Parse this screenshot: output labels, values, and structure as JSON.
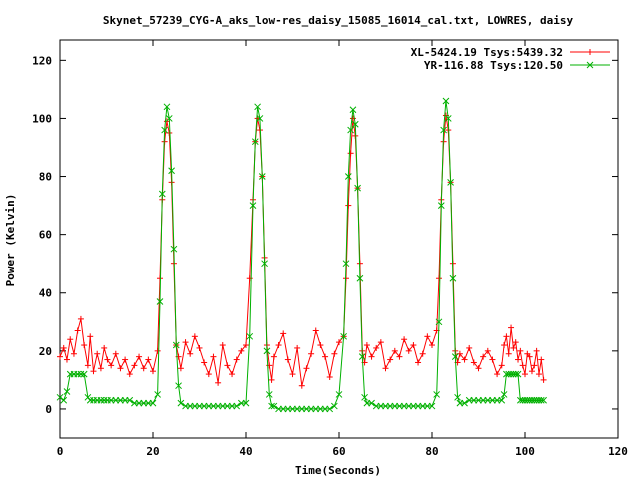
{
  "chart_data": {
    "type": "line",
    "title": "Skynet_57239_CYG-A_aks_low-res_daisy_15085_16014_cal.txt, LOWRES, daisy",
    "xlabel": "Time(Seconds)",
    "ylabel": "Power (Kelvin)",
    "xlim": [
      0,
      120
    ],
    "ylim": [
      -10,
      127
    ],
    "xticks": [
      0,
      20,
      40,
      60,
      80,
      100,
      120
    ],
    "yticks": [
      0,
      20,
      40,
      60,
      80,
      100,
      120
    ],
    "grid": false,
    "legend": "top-right",
    "series": [
      {
        "name": "XL-5424.19 Tsys:5439.32",
        "color": "#ff0000",
        "marker": "plus",
        "x": [
          0.0,
          0.8,
          1.5,
          2.2,
          3.0,
          3.8,
          4.5,
          5.2,
          6.0,
          6.5,
          7.2,
          8.0,
          8.8,
          9.5,
          10.2,
          11.0,
          12.0,
          13.0,
          14.0,
          15.0,
          16.0,
          17.0,
          18.0,
          19.0,
          20.0,
          21.0,
          21.5,
          22.0,
          22.5,
          23.0,
          23.5,
          24.0,
          24.5,
          25.0,
          25.5,
          26.0,
          27.0,
          28.0,
          29.0,
          30.0,
          31.0,
          32.0,
          33.0,
          34.0,
          35.0,
          36.0,
          37.0,
          38.0,
          39.0,
          40.0,
          40.8,
          41.5,
          42.0,
          42.5,
          43.0,
          43.5,
          44.0,
          44.5,
          45.0,
          45.5,
          46.0,
          47.0,
          48.0,
          49.0,
          50.0,
          51.0,
          52.0,
          53.0,
          54.0,
          55.0,
          56.0,
          57.0,
          58.0,
          59.0,
          60.0,
          61.0,
          61.5,
          62.0,
          62.5,
          63.0,
          63.5,
          64.0,
          64.5,
          65.0,
          65.5,
          66.0,
          67.0,
          68.0,
          69.0,
          70.0,
          71.0,
          72.0,
          73.0,
          74.0,
          75.0,
          76.0,
          77.0,
          78.0,
          79.0,
          80.0,
          81.0,
          81.5,
          82.0,
          82.5,
          83.0,
          83.5,
          84.0,
          84.5,
          85.0,
          85.5,
          86.0,
          87.0,
          88.0,
          89.0,
          90.0,
          91.0,
          92.0,
          93.0,
          94.0,
          95.0,
          95.5,
          96.0,
          96.5,
          97.0,
          97.5,
          98.0,
          98.5,
          99.0,
          99.5,
          100.0,
          100.5,
          101.0,
          101.5,
          102.0,
          102.5,
          103.0,
          103.5,
          104.0
        ],
        "y": [
          18,
          21,
          17,
          24,
          19,
          27,
          31,
          22,
          15,
          25,
          13,
          19,
          14,
          21,
          17,
          15,
          19,
          14,
          17,
          12,
          15,
          18,
          14,
          17,
          13,
          20,
          45,
          72,
          92,
          99,
          95,
          78,
          50,
          22,
          18,
          14,
          23,
          19,
          25,
          21,
          16,
          12,
          18,
          9,
          22,
          15,
          12,
          17,
          20,
          22,
          45,
          72,
          92,
          100,
          96,
          80,
          52,
          22,
          15,
          10,
          18,
          22,
          26,
          17,
          12,
          21,
          8,
          14,
          19,
          27,
          22,
          18,
          11,
          19,
          23,
          25,
          45,
          70,
          88,
          100,
          94,
          76,
          50,
          20,
          16,
          22,
          18,
          21,
          23,
          14,
          17,
          20,
          18,
          24,
          20,
          22,
          16,
          19,
          25,
          22,
          27,
          45,
          72,
          92,
          101,
          96,
          78,
          50,
          20,
          16,
          19,
          17,
          21,
          16,
          14,
          18,
          20,
          17,
          12,
          15,
          22,
          25,
          19,
          28,
          21,
          23,
          17,
          20,
          15,
          12,
          19,
          18,
          13,
          15,
          20,
          12,
          17,
          10
        ]
      },
      {
        "name": "YR-116.88 Tsys:120.50",
        "color": "#00b000",
        "marker": "cross",
        "x": [
          0.0,
          0.8,
          1.5,
          2.2,
          3.0,
          3.8,
          4.5,
          5.2,
          6.0,
          6.5,
          7.2,
          8.0,
          8.8,
          9.5,
          10.2,
          11.0,
          12.0,
          13.0,
          14.0,
          15.0,
          16.0,
          17.0,
          18.0,
          19.0,
          20.0,
          21.0,
          21.5,
          22.0,
          22.5,
          23.0,
          23.5,
          24.0,
          24.5,
          25.0,
          25.5,
          26.0,
          27.0,
          28.0,
          29.0,
          30.0,
          31.0,
          32.0,
          33.0,
          34.0,
          35.0,
          36.0,
          37.0,
          38.0,
          39.0,
          40.0,
          40.8,
          41.5,
          42.0,
          42.5,
          43.0,
          43.5,
          44.0,
          44.5,
          45.0,
          45.5,
          46.0,
          47.0,
          48.0,
          49.0,
          50.0,
          51.0,
          52.0,
          53.0,
          54.0,
          55.0,
          56.0,
          57.0,
          58.0,
          59.0,
          60.0,
          61.0,
          61.5,
          62.0,
          62.5,
          63.0,
          63.5,
          64.0,
          64.5,
          65.0,
          65.5,
          66.0,
          67.0,
          68.0,
          69.0,
          70.0,
          71.0,
          72.0,
          73.0,
          74.0,
          75.0,
          76.0,
          77.0,
          78.0,
          79.0,
          80.0,
          81.0,
          81.5,
          82.0,
          82.5,
          83.0,
          83.5,
          84.0,
          84.5,
          85.0,
          85.5,
          86.0,
          87.0,
          88.0,
          89.0,
          90.0,
          91.0,
          92.0,
          93.0,
          94.0,
          95.0,
          95.5,
          96.0,
          96.5,
          97.0,
          97.5,
          98.0,
          98.5,
          99.0,
          99.5,
          100.0,
          100.5,
          101.0,
          101.5,
          102.0,
          102.5,
          103.0,
          103.5,
          104.0
        ],
        "y": [
          4,
          3,
          6,
          12,
          12,
          12,
          12,
          12,
          4,
          3,
          3,
          3,
          3,
          3,
          3,
          3,
          3,
          3,
          3,
          3,
          2,
          2,
          2,
          2,
          2,
          5,
          37,
          74,
          96,
          104,
          100,
          82,
          55,
          22,
          8,
          2,
          1,
          1,
          1,
          1,
          1,
          1,
          1,
          1,
          1,
          1,
          1,
          1,
          2,
          2,
          25,
          70,
          92,
          104,
          100,
          80,
          50,
          20,
          5,
          1,
          1,
          0,
          0,
          0,
          0,
          0,
          0,
          0,
          0,
          0,
          0,
          0,
          0,
          1,
          5,
          25,
          50,
          80,
          96,
          103,
          98,
          76,
          45,
          18,
          4,
          2,
          2,
          1,
          1,
          1,
          1,
          1,
          1,
          1,
          1,
          1,
          1,
          1,
          1,
          1,
          5,
          30,
          70,
          96,
          106,
          100,
          78,
          45,
          18,
          4,
          2,
          2,
          3,
          3,
          3,
          3,
          3,
          3,
          3,
          3,
          5,
          12,
          12,
          12,
          12,
          12,
          12,
          3,
          3,
          3,
          3,
          3,
          3,
          3,
          3,
          3,
          3,
          3
        ]
      }
    ]
  }
}
